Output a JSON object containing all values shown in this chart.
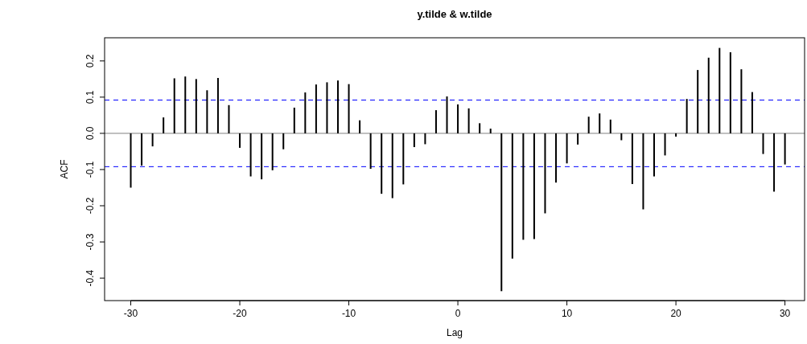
{
  "chart_data": {
    "type": "bar",
    "title": "y.tilde & w.tilde",
    "xlabel": "Lag",
    "ylabel": "ACF",
    "x": [
      -30,
      -29,
      -28,
      -27,
      -26,
      -25,
      -24,
      -23,
      -22,
      -21,
      -20,
      -19,
      -18,
      -17,
      -16,
      -15,
      -14,
      -13,
      -12,
      -11,
      -10,
      -9,
      -8,
      -7,
      -6,
      -5,
      -4,
      -3,
      -2,
      -1,
      0,
      1,
      2,
      3,
      4,
      5,
      6,
      7,
      8,
      9,
      10,
      11,
      12,
      13,
      14,
      15,
      16,
      17,
      18,
      19,
      20,
      21,
      22,
      23,
      24,
      25,
      26,
      27,
      28,
      29,
      30
    ],
    "series": [
      {
        "color": "#000000",
        "values": [
          -0.15,
          -0.089,
          -0.036,
          0.044,
          0.152,
          0.157,
          0.15,
          0.119,
          0.153,
          0.078,
          -0.04,
          -0.119,
          -0.127,
          -0.102,
          -0.044,
          0.071,
          0.113,
          0.135,
          0.141,
          0.146,
          0.136,
          0.036,
          -0.098,
          -0.167,
          -0.179,
          -0.141,
          -0.038,
          -0.03,
          0.064,
          0.102,
          0.08,
          0.069,
          0.028,
          0.013,
          -0.436,
          -0.346,
          -0.294,
          -0.292,
          -0.221,
          -0.136,
          -0.083,
          -0.031,
          0.046,
          0.055,
          0.038,
          -0.019,
          -0.14,
          -0.21,
          -0.119,
          -0.061,
          -0.009,
          0.095,
          0.175,
          0.209,
          0.236,
          0.224,
          0.177,
          0.114,
          -0.057,
          -0.161,
          -0.086
        ]
      }
    ],
    "xlim": [
      -32.4,
      31.8
    ],
    "xticks": [
      -30,
      -20,
      -10,
      0,
      10,
      20,
      30
    ],
    "ylim": [
      -0.462,
      0.264
    ],
    "yticks": [
      -0.4,
      -0.3,
      -0.2,
      -0.1,
      {
        "value": 0,
        "label": "0.0"
      },
      0.1,
      0.2
    ],
    "ref_lines": [
      {
        "axis": "y",
        "value": 0,
        "color": "#808080",
        "line_style": "solid"
      },
      {
        "axis": "y",
        "value": 0.092,
        "color": "#0000ff",
        "line_style": "dashed"
      },
      {
        "axis": "y",
        "value": -0.092,
        "color": "#0000ff",
        "line_style": "dashed"
      }
    ],
    "grid": false
  }
}
